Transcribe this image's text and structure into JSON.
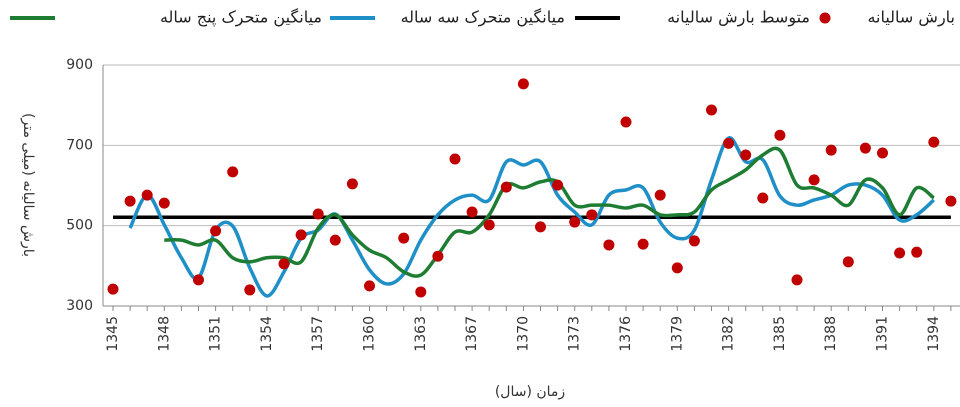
{
  "chart_data": {
    "type": "line",
    "y_label": "بارش سالیانه (میلی متر)",
    "x_label": "زمان (سال)",
    "categories": [
      "1345",
      null,
      null,
      "1348",
      null,
      null,
      "1351",
      null,
      null,
      "1354",
      null,
      null,
      "1357",
      null,
      null,
      "1360",
      null,
      null,
      "1363",
      null,
      null,
      "1367",
      null,
      null,
      "1370",
      null,
      null,
      "1373",
      null,
      null,
      "1376",
      null,
      null,
      "1379",
      null,
      null,
      "1382",
      null,
      null,
      "1385",
      null,
      null,
      "1388",
      null,
      null,
      "1391",
      null,
      null,
      "1394",
      null
    ],
    "ylim": [
      300,
      900
    ],
    "yticks": [
      300,
      500,
      700,
      900
    ],
    "grid": true,
    "series": [
      {
        "name": "بارش سالیانه",
        "color": "#c00000",
        "kind": "scatter",
        "values": [
          342,
          561,
          576,
          556,
          null,
          365,
          487,
          634,
          340,
          null,
          405,
          477,
          529,
          464,
          604,
          350,
          null,
          469,
          335,
          424,
          666,
          534,
          502,
          596,
          853,
          497,
          601,
          509,
          527,
          452,
          758,
          454,
          576,
          395,
          462,
          788,
          705,
          676,
          569,
          725,
          365,
          614,
          688,
          410,
          693,
          681,
          432,
          434,
          708,
          561
        ]
      },
      {
        "name": "متوسط بارش سالیانه",
        "color": "#000000",
        "kind": "mean",
        "value": 521
      },
      {
        "name": "میانگین متحرک سه ساله",
        "color": "#1f8fc8",
        "kind": "line",
        "values": [
          null,
          494,
          576,
          502,
          420,
          370,
          489,
          499,
          395,
          325,
          385,
          469,
          489,
          529,
          464,
          390,
          355,
          380,
          464,
          527,
          564,
          576,
          564,
          659,
          651,
          659,
          576,
          534,
          502,
          576,
          589,
          594,
          509,
          469,
          489,
          614,
          718,
          659,
          664,
          574,
          551,
          564,
          576,
          601,
          601,
          576,
          514,
          527,
          564,
          null
        ]
      },
      {
        "name": "میانگین متحرک پنج ساله",
        "color": "#1e7d32",
        "kind": "line",
        "values": [
          null,
          null,
          null,
          464,
          464,
          452,
          464,
          420,
          410,
          420,
          420,
          410,
          494,
          527,
          477,
          439,
          420,
          385,
          377,
          427,
          484,
          484,
          527,
          601,
          594,
          609,
          609,
          551,
          551,
          551,
          544,
          551,
          527,
          527,
          534,
          589,
          614,
          639,
          676,
          688,
          601,
          594,
          576,
          551,
          614,
          594,
          527,
          594,
          569,
          null
        ]
      }
    ]
  }
}
